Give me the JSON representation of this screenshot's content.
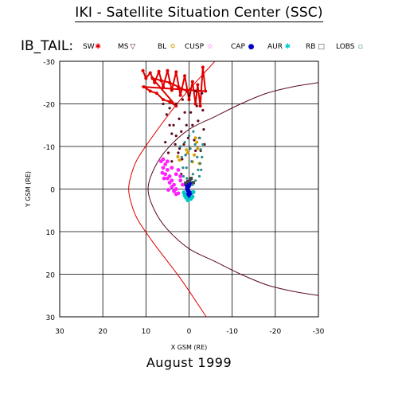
{
  "header": {
    "title": "IKI - Satellite Situation Center (SSC)",
    "orbit": "IB_TAIL:",
    "month": "August   1999"
  },
  "chart_data": {
    "type": "scatter",
    "title": "IKI - Satellite Situation Center (SSC)",
    "xlabel": "X GSM (RE)",
    "ylabel": "Y GSM (RE)",
    "xlim": [
      30,
      -30
    ],
    "ylim": [
      -30,
      30
    ],
    "x_ticks": [
      "30",
      "20",
      "10",
      "0",
      "-10",
      "-20",
      "-30"
    ],
    "y_ticks": [
      "-30",
      "-20",
      "-10",
      "0",
      "10",
      "20",
      "30"
    ],
    "grid": true,
    "legend": [
      {
        "label": "SW",
        "color": "#e00000",
        "symbol": "✱"
      },
      {
        "label": "MS",
        "color": "#5a0a1e",
        "symbol": "▽"
      },
      {
        "label": "BL",
        "color": "#d8a000",
        "symbol": "✡"
      },
      {
        "label": "CUSP",
        "color": "#ff20ff",
        "symbol": "☆"
      },
      {
        "label": "CAP",
        "color": "#0000c8",
        "symbol": "●"
      },
      {
        "label": "AUR",
        "color": "#00c8c8",
        "symbol": "✱"
      },
      {
        "label": "RB",
        "color": "#404040",
        "symbol": "□"
      },
      {
        "label": "LOBS",
        "color": "#2a8a8a",
        "symbol": "▫"
      }
    ],
    "boundaries": [
      {
        "name": "bow shock",
        "color": "#e00000",
        "points": [
          [
            -6,
            -30
          ],
          [
            2,
            -21
          ],
          [
            8,
            -13
          ],
          [
            12,
            -7
          ],
          [
            13.5,
            -3
          ],
          [
            14,
            0
          ],
          [
            13.5,
            3
          ],
          [
            12,
            7
          ],
          [
            8,
            13
          ],
          [
            2,
            21
          ],
          [
            -4,
            30
          ]
        ]
      },
      {
        "name": "magnetopause",
        "color": "#5a0a1e",
        "points": [
          [
            -30,
            -25
          ],
          [
            -24,
            -24
          ],
          [
            -18,
            -22.5
          ],
          [
            -12,
            -20
          ],
          [
            -6,
            -17
          ],
          [
            0,
            -14
          ],
          [
            5,
            -9.5
          ],
          [
            8,
            -5
          ],
          [
            9.5,
            0
          ],
          [
            8,
            5
          ],
          [
            5,
            9.5
          ],
          [
            0,
            14
          ],
          [
            -6,
            17
          ],
          [
            -12,
            20
          ],
          [
            -18,
            22.5
          ],
          [
            -24,
            24
          ],
          [
            -30,
            25
          ]
        ]
      }
    ],
    "series": [
      {
        "name": "SW",
        "color": "#e00000",
        "points": [
          [
            10.7,
            -27.8
          ],
          [
            10,
            -26
          ],
          [
            9,
            -27.3
          ],
          [
            8,
            -25
          ],
          [
            7,
            -27.6
          ],
          [
            6,
            -24
          ],
          [
            5,
            -27.8
          ],
          [
            4,
            -23.2
          ],
          [
            3,
            -27.5
          ],
          [
            2,
            -22
          ],
          [
            1,
            -26.6
          ],
          [
            0,
            -21
          ],
          [
            -0.8,
            -25.2
          ],
          [
            -1.5,
            -20
          ],
          [
            -2,
            -24.5
          ],
          [
            -2.6,
            -19.5
          ],
          [
            -3.2,
            -28.6
          ],
          [
            -3.8,
            -23
          ],
          [
            10.5,
            -24
          ],
          [
            9,
            -23
          ],
          [
            7.5,
            -22.5
          ],
          [
            6,
            -21
          ],
          [
            4.5,
            -20.5
          ],
          [
            3,
            -19.5
          ],
          [
            8.5,
            -26
          ],
          [
            6.5,
            -25.5
          ],
          [
            4.5,
            -25
          ],
          [
            2.5,
            -24
          ],
          [
            0.5,
            -23
          ]
        ]
      },
      {
        "name": "MS",
        "color": "#5a0a1e",
        "points": [
          [
            6,
            -20
          ],
          [
            5.2,
            -17.5
          ],
          [
            4.5,
            -15
          ],
          [
            4,
            -13
          ],
          [
            3.2,
            -10.5
          ],
          [
            2.5,
            -8.5
          ],
          [
            4.5,
            -19
          ],
          [
            3.6,
            -15
          ],
          [
            3,
            -12.5
          ],
          [
            2.2,
            -9.5
          ],
          [
            1.6,
            -7
          ],
          [
            3,
            -20
          ],
          [
            2.3,
            -16.5
          ],
          [
            1.8,
            -13.5
          ],
          [
            1.2,
            -10.5
          ],
          [
            0.8,
            -8
          ],
          [
            1.5,
            -21
          ],
          [
            1,
            -18
          ],
          [
            0.6,
            -15
          ],
          [
            0.2,
            -12
          ],
          [
            -0.2,
            -9.5
          ],
          [
            0,
            -22
          ],
          [
            -0.4,
            -18
          ],
          [
            -0.8,
            -15
          ],
          [
            -1.2,
            -11.5
          ],
          [
            -1.5,
            -9
          ],
          [
            -1.5,
            -23
          ],
          [
            -1.8,
            -19.5
          ],
          [
            -2.1,
            -16
          ],
          [
            -2.4,
            -12
          ],
          [
            -2.7,
            -9
          ],
          [
            -3,
            -22.5
          ],
          [
            -3.2,
            -18.5
          ],
          [
            -3.4,
            -14
          ],
          [
            -3.6,
            -10.5
          ],
          [
            5.5,
            -11
          ],
          [
            4.8,
            -8.5
          ],
          [
            4,
            -6.5
          ],
          [
            2.5,
            -4.5
          ],
          [
            1.8,
            -3.5
          ]
        ]
      },
      {
        "name": "BL",
        "color": "#d8a000",
        "points": [
          [
            -1.5,
            -12
          ],
          [
            -1.8,
            -11
          ],
          [
            -1.2,
            -8
          ],
          [
            -2,
            -9.5
          ],
          [
            0.6,
            -9.2
          ],
          [
            0.3,
            -8.5
          ],
          [
            -0.8,
            -6.4
          ],
          [
            2.6,
            -7.6
          ],
          [
            2.2,
            -6.8
          ],
          [
            -2.4,
            -6
          ]
        ]
      },
      {
        "name": "CUSP",
        "color": "#ff20ff",
        "points": [
          [
            6.5,
            -6.5
          ],
          [
            6,
            -5
          ],
          [
            5.5,
            -3.5
          ],
          [
            5,
            -2.5
          ],
          [
            4.5,
            -1.5
          ],
          [
            4,
            -0.5
          ],
          [
            3.5,
            0.5
          ],
          [
            3,
            1.2
          ],
          [
            5.5,
            -5.8
          ],
          [
            5,
            -4.5
          ],
          [
            4.5,
            -3
          ],
          [
            4,
            -2
          ],
          [
            3.5,
            -1
          ],
          [
            3,
            0
          ],
          [
            2.5,
            1
          ],
          [
            6,
            -7
          ],
          [
            5,
            -6.5
          ],
          [
            4,
            -5
          ],
          [
            3,
            -3.5
          ],
          [
            2,
            -2
          ],
          [
            1.5,
            -1
          ],
          [
            2.5,
            -4.5
          ],
          [
            2,
            -3
          ],
          [
            6.2,
            -3.8
          ],
          [
            5.8,
            -2.5
          ],
          [
            4.8,
            0.2
          ]
        ]
      },
      {
        "name": "CAP",
        "color": "#0000c8",
        "points": [
          [
            0.6,
            -1
          ],
          [
            0.4,
            -0.3
          ],
          [
            0.2,
            0.4
          ],
          [
            0,
            1.1
          ],
          [
            -0.2,
            1.8
          ],
          [
            0.4,
            0.1
          ],
          [
            0.1,
            -0.7
          ],
          [
            -0.4,
            0.9
          ],
          [
            0.6,
            1.4
          ],
          [
            -0.3,
            -1.2
          ]
        ]
      },
      {
        "name": "AUR",
        "color": "#00c8c8",
        "points": [
          [
            1,
            1.5
          ],
          [
            0.7,
            2
          ],
          [
            0.3,
            2.6
          ],
          [
            -0.4,
            2.3
          ],
          [
            -0.8,
            1.8
          ],
          [
            1.2,
            0.8
          ],
          [
            -1,
            0.7
          ]
        ]
      },
      {
        "name": "RB",
        "color": "#404040",
        "points": [
          [
            -0.5,
            -2.5
          ],
          [
            -0.2,
            -2.1
          ],
          [
            0.3,
            -1.8
          ],
          [
            -1,
            -1.5
          ],
          [
            0.8,
            -1.4
          ]
        ]
      },
      {
        "name": "LOBS",
        "color": "#2a8a8a",
        "points": [
          [
            -1,
            -13.5
          ],
          [
            -1.4,
            -10.5
          ],
          [
            -1.9,
            -7.5
          ],
          [
            -2.1,
            -4.5
          ],
          [
            -1.5,
            -2
          ],
          [
            0,
            -12.5
          ],
          [
            -0.3,
            -9.5
          ],
          [
            -0.6,
            -6.5
          ],
          [
            -0.9,
            -3.5
          ],
          [
            -0.8,
            -1
          ],
          [
            1,
            -11
          ],
          [
            0.8,
            -8
          ],
          [
            0.6,
            -5
          ],
          [
            0.5,
            -2.5
          ],
          [
            -2.5,
            -12
          ],
          [
            -2.7,
            -9.3
          ],
          [
            -2.6,
            -6
          ],
          [
            -2.4,
            -3
          ],
          [
            2,
            -10
          ],
          [
            1.7,
            -7.5
          ],
          [
            1.4,
            -5
          ],
          [
            1.3,
            -3
          ],
          [
            -3.2,
            -10.5
          ],
          [
            -3,
            -7.5
          ],
          [
            -2.8,
            -4.5
          ]
        ]
      }
    ]
  }
}
